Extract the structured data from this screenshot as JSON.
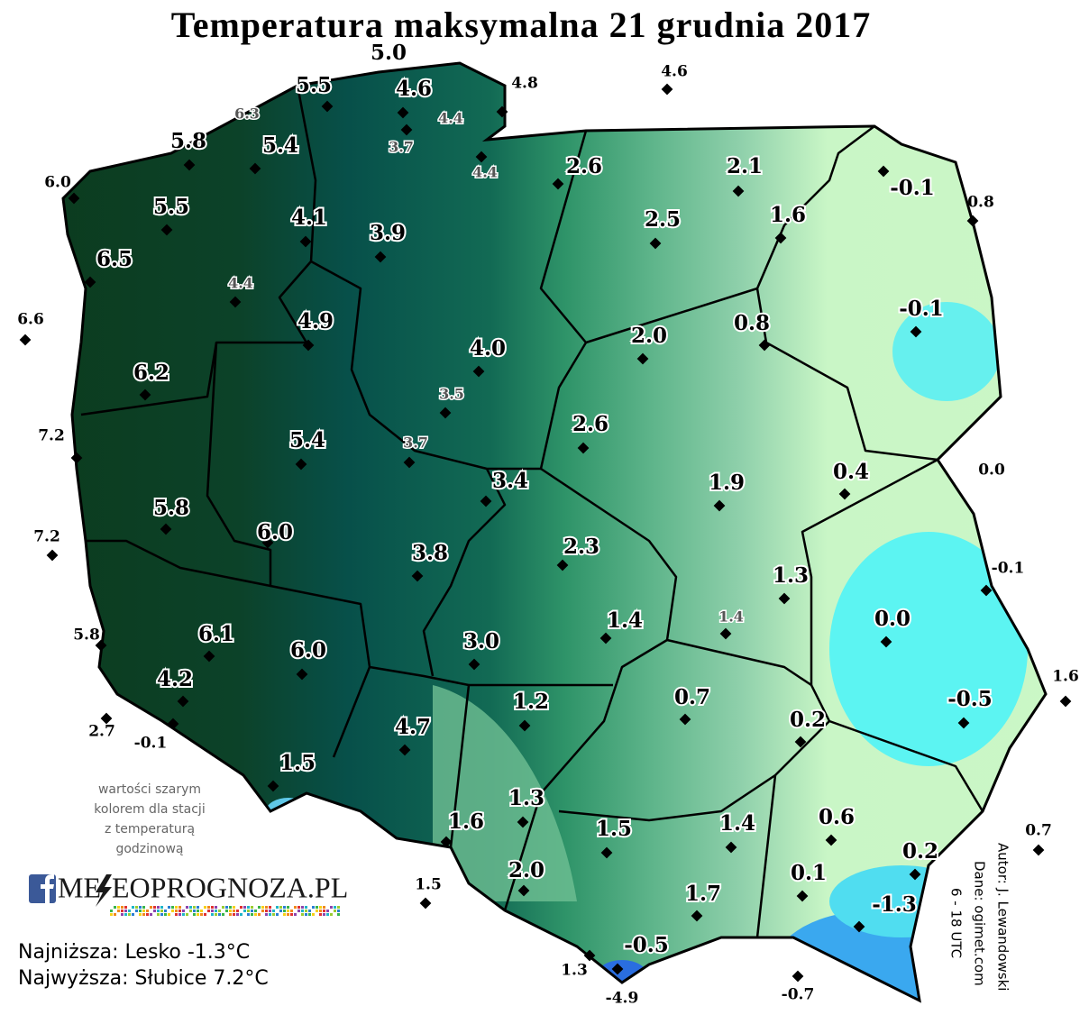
{
  "title": "Temperatura maksymalna 21 grudnia 2017",
  "note": [
    "wartości szarym",
    "kolorem dla stacji",
    "z temperaturą",
    "godzinową"
  ],
  "logo": {
    "part1": "ME",
    "part2": "EOPROGNOZA.PL"
  },
  "summary": [
    "Najniższa: Lesko -1.3°C",
    "Najwyższa: Słubice 7.2°C"
  ],
  "credits": [
    "Autor: J. Lewandowski",
    "Dane: ogimet.com",
    "6 - 18 UTC"
  ],
  "stations": [
    {
      "value": "5.0",
      "kind": "main"
    },
    {
      "value": "5.5",
      "kind": "main"
    },
    {
      "value": "6.3",
      "kind": "hourly"
    },
    {
      "value": "4.6",
      "kind": "main"
    },
    {
      "value": "4.4",
      "kind": "hourly"
    },
    {
      "value": "4.8",
      "kind": "outside"
    },
    {
      "value": "4.6",
      "kind": "outside"
    },
    {
      "value": "5.8",
      "kind": "main"
    },
    {
      "value": "5.4",
      "kind": "main"
    },
    {
      "value": "3.7",
      "kind": "hourly"
    },
    {
      "value": "4.4",
      "kind": "hourly"
    },
    {
      "value": "2.6",
      "kind": "main"
    },
    {
      "value": "2.1",
      "kind": "main"
    },
    {
      "value": "-0.1",
      "kind": "main"
    },
    {
      "value": "0.8",
      "kind": "outside"
    },
    {
      "value": "6.0",
      "kind": "outside"
    },
    {
      "value": "5.5",
      "kind": "main"
    },
    {
      "value": "4.1",
      "kind": "main"
    },
    {
      "value": "3.9",
      "kind": "main"
    },
    {
      "value": "2.5",
      "kind": "main"
    },
    {
      "value": "1.6",
      "kind": "main"
    },
    {
      "value": "6.5",
      "kind": "main"
    },
    {
      "value": "4.4",
      "kind": "hourly"
    },
    {
      "value": "6.6",
      "kind": "outside"
    },
    {
      "value": "4.9",
      "kind": "main"
    },
    {
      "value": "-0.1",
      "kind": "main"
    },
    {
      "value": "2.0",
      "kind": "main"
    },
    {
      "value": "0.8",
      "kind": "main"
    },
    {
      "value": "4.0",
      "kind": "main"
    },
    {
      "value": "6.2",
      "kind": "main"
    },
    {
      "value": "3.5",
      "kind": "hourly"
    },
    {
      "value": "7.2",
      "kind": "outside"
    },
    {
      "value": "5.4",
      "kind": "main"
    },
    {
      "value": "3.7",
      "kind": "hourly"
    },
    {
      "value": "2.6",
      "kind": "main"
    },
    {
      "value": "3.4",
      "kind": "main"
    },
    {
      "value": "1.9",
      "kind": "main"
    },
    {
      "value": "0.4",
      "kind": "main"
    },
    {
      "value": "0.0",
      "kind": "outside"
    },
    {
      "value": "5.8",
      "kind": "main"
    },
    {
      "value": "7.2",
      "kind": "outside"
    },
    {
      "value": "6.0",
      "kind": "main"
    },
    {
      "value": "2.3",
      "kind": "main"
    },
    {
      "value": "3.8",
      "kind": "main"
    },
    {
      "value": "-0.1",
      "kind": "outside"
    },
    {
      "value": "1.3",
      "kind": "main"
    },
    {
      "value": "0.0",
      "kind": "main"
    },
    {
      "value": "1.4",
      "kind": "main"
    },
    {
      "value": "1.4",
      "kind": "hourly"
    },
    {
      "value": "3.0",
      "kind": "main"
    },
    {
      "value": "5.8",
      "kind": "outside"
    },
    {
      "value": "6.1",
      "kind": "main"
    },
    {
      "value": "6.0",
      "kind": "main"
    },
    {
      "value": "4.2",
      "kind": "main"
    },
    {
      "value": "1.6",
      "kind": "outside"
    },
    {
      "value": "-0.5",
      "kind": "main"
    },
    {
      "value": "0.7",
      "kind": "main"
    },
    {
      "value": "0.2",
      "kind": "main"
    },
    {
      "value": "1.2",
      "kind": "main"
    },
    {
      "value": "2.7",
      "kind": "outside"
    },
    {
      "value": "-0.1",
      "kind": "outside"
    },
    {
      "value": "4.7",
      "kind": "main"
    },
    {
      "value": "1.5",
      "kind": "main"
    },
    {
      "value": "1.3",
      "kind": "main"
    },
    {
      "value": "1.6",
      "kind": "main"
    },
    {
      "value": "1.5",
      "kind": "main"
    },
    {
      "value": "1.4",
      "kind": "main"
    },
    {
      "value": "0.6",
      "kind": "main"
    },
    {
      "value": "0.7",
      "kind": "outside"
    },
    {
      "value": "0.2",
      "kind": "main"
    },
    {
      "value": "2.0",
      "kind": "main"
    },
    {
      "value": "0.1",
      "kind": "main"
    },
    {
      "value": "1.5",
      "kind": "outside"
    },
    {
      "value": "1.7",
      "kind": "main"
    },
    {
      "value": "-1.3",
      "kind": "main"
    },
    {
      "value": "-0.5",
      "kind": "main"
    },
    {
      "value": "1.3",
      "kind": "outside"
    },
    {
      "value": "-4.9",
      "kind": "outside"
    },
    {
      "value": "-0.7",
      "kind": "outside"
    }
  ]
}
